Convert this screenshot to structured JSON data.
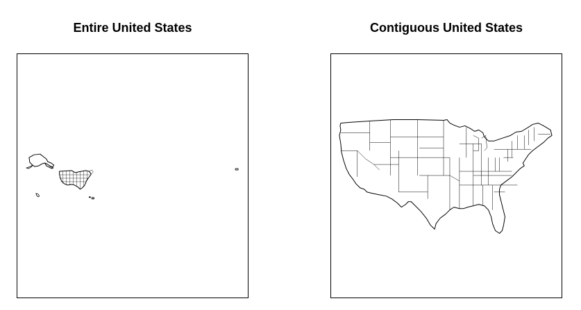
{
  "panels": [
    {
      "title": "Entire United States"
    },
    {
      "title": "Contiguous United States"
    }
  ],
  "colors": {
    "background": "#ffffff",
    "ink": "#000000"
  }
}
